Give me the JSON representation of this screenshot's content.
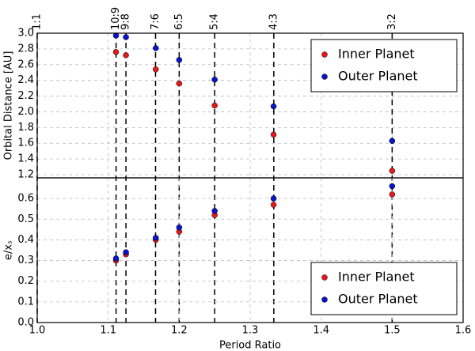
{
  "chart_data": [
    {
      "type": "scatter",
      "ylabel": "Orbital Distance [AU]",
      "x": [
        1.111,
        1.125,
        1.167,
        1.2,
        1.25,
        1.333,
        1.5
      ],
      "series": [
        {
          "name": "Inner Planet",
          "color": "#e31a1c",
          "values": [
            2.76,
            2.72,
            2.54,
            2.36,
            2.08,
            1.71,
            1.25
          ]
        },
        {
          "name": "Outer Planet",
          "color": "#0a14c8",
          "values": [
            2.97,
            2.95,
            2.81,
            2.66,
            2.41,
            2.07,
            1.63
          ]
        }
      ],
      "xlim": [
        1.0,
        1.6
      ],
      "xticks": [
        {
          "value": 1.0,
          "label": "1:1"
        },
        {
          "value": 1.1111,
          "label": "10:9"
        },
        {
          "value": 1.125,
          "label": "9:8"
        },
        {
          "value": 1.1667,
          "label": "7:6"
        },
        {
          "value": 1.2,
          "label": "6:5"
        },
        {
          "value": 1.25,
          "label": "5:4"
        },
        {
          "value": 1.3333,
          "label": "4:3"
        },
        {
          "value": 1.5,
          "label": "3:2"
        }
      ],
      "ylim": [
        1.16,
        3.0
      ],
      "yticks": [
        1.2,
        1.4,
        1.6,
        1.8,
        {
          "value": 2.0,
          "label": "2.0"
        },
        2.2,
        2.4,
        2.6,
        2.8,
        {
          "value": 3.0,
          "label": "3.0"
        }
      ],
      "grid": true,
      "legend": "upper right"
    },
    {
      "type": "scatter",
      "xlabel": "Period Ratio",
      "ylabel": "e/xₛ",
      "x": [
        1.111,
        1.125,
        1.167,
        1.2,
        1.25,
        1.333,
        1.5
      ],
      "series": [
        {
          "name": "Inner Planet",
          "color": "#e31a1c",
          "values": [
            0.3,
            0.33,
            0.4,
            0.44,
            0.52,
            0.57,
            0.62
          ]
        },
        {
          "name": "Outer Planet",
          "color": "#0a14c8",
          "values": [
            0.31,
            0.34,
            0.41,
            0.46,
            0.54,
            0.6,
            0.66
          ]
        }
      ],
      "xlim": [
        1.0,
        1.6
      ],
      "xticks": [
        {
          "value": 1.0,
          "label": "1.0"
        },
        1.1,
        1.2,
        1.3,
        1.4,
        1.5,
        1.6
      ],
      "ylim": [
        0,
        0.7
      ],
      "yticks": [
        {
          "value": 0,
          "label": "0.0"
        },
        0.1,
        0.2,
        0.3,
        0.4,
        0.5,
        0.6
      ],
      "grid": true,
      "legend": "lower right"
    }
  ]
}
